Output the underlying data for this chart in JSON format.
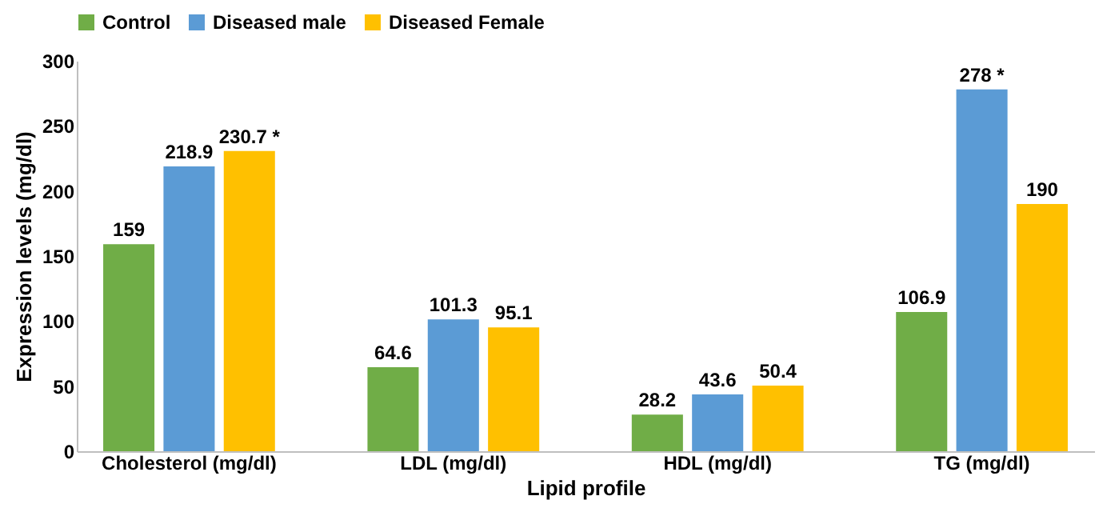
{
  "chart_data": {
    "type": "bar",
    "xlabel": "Lipid profile",
    "ylabel": "Expression levels (mg/dl)",
    "categories": [
      "Cholesterol (mg/dl)",
      "LDL (mg/dl)",
      "HDL (mg/dl)",
      "TG (mg/dl)"
    ],
    "series": [
      {
        "name": "Control",
        "color": "#70ad47",
        "values": [
          159,
          64.6,
          28.2,
          106.9
        ],
        "value_labels": [
          "159",
          "64.6",
          "28.2",
          "106.9"
        ]
      },
      {
        "name": "Diseased male",
        "color": "#5b9bd5",
        "values": [
          218.9,
          101.3,
          43.6,
          278
        ],
        "value_labels": [
          "218.9",
          "101.3",
          "43.6",
          "278 *"
        ]
      },
      {
        "name": "Diseased Female",
        "color": "#ffc000",
        "values": [
          230.7,
          95.1,
          50.4,
          190
        ],
        "value_labels": [
          "230.7 *",
          "95.1",
          "50.4",
          "190"
        ]
      }
    ],
    "ylim": [
      0,
      300
    ],
    "yticks": [
      0,
      50,
      100,
      150,
      200,
      250,
      300
    ],
    "grid": false,
    "legend": "top"
  }
}
